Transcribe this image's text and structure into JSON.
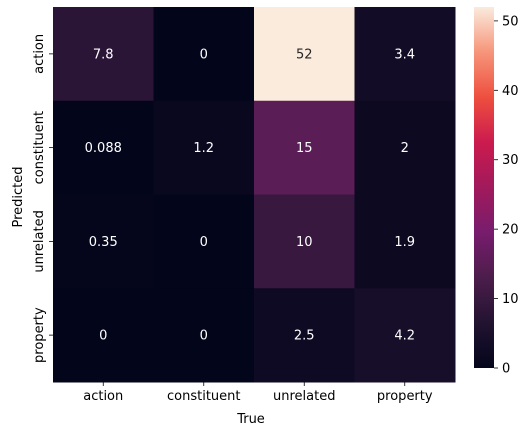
{
  "chart_data": {
    "type": "heatmap",
    "title": "",
    "xlabel": "True",
    "ylabel": "Predicted",
    "x_categories": [
      "action",
      "constituent",
      "unrelated",
      "property"
    ],
    "y_categories": [
      "action",
      "constituent",
      "unrelated",
      "property"
    ],
    "values": [
      [
        7.8,
        0,
        52,
        3.4
      ],
      [
        0.088,
        1.2,
        15,
        2
      ],
      [
        0.35,
        0,
        10,
        1.9
      ],
      [
        0,
        0,
        2.5,
        4.2
      ]
    ],
    "value_labels": [
      [
        "7.8",
        "0",
        "52",
        "3.4"
      ],
      [
        "0.088",
        "1.2",
        "15",
        "2"
      ],
      [
        "0.35",
        "0",
        "10",
        "1.9"
      ],
      [
        "0",
        "0",
        "2.5",
        "4.2"
      ]
    ],
    "colorbar": {
      "min": 0,
      "max": 52,
      "ticks": [
        0,
        10,
        20,
        30,
        40,
        50
      ],
      "colormap": "rocket"
    },
    "grid": false
  }
}
